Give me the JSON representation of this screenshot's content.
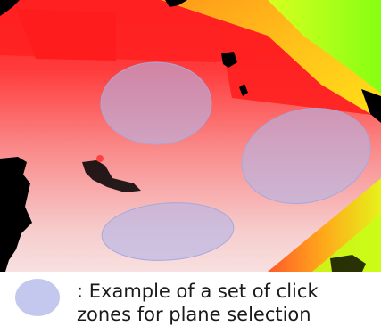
{
  "figure": {
    "kind": "depth-map",
    "colors": {
      "near": "#f8e2e2",
      "mid": "#ff2a2a",
      "far": "#ffd800",
      "farthest": "#a6ff10",
      "hole": "#000000",
      "click_zone_fill": "#b4b4e6",
      "click_zone_stroke": "#a8a8dc"
    }
  },
  "legend": {
    "line1": ": Example of a set of click",
    "line2": "zones for plane selection"
  }
}
